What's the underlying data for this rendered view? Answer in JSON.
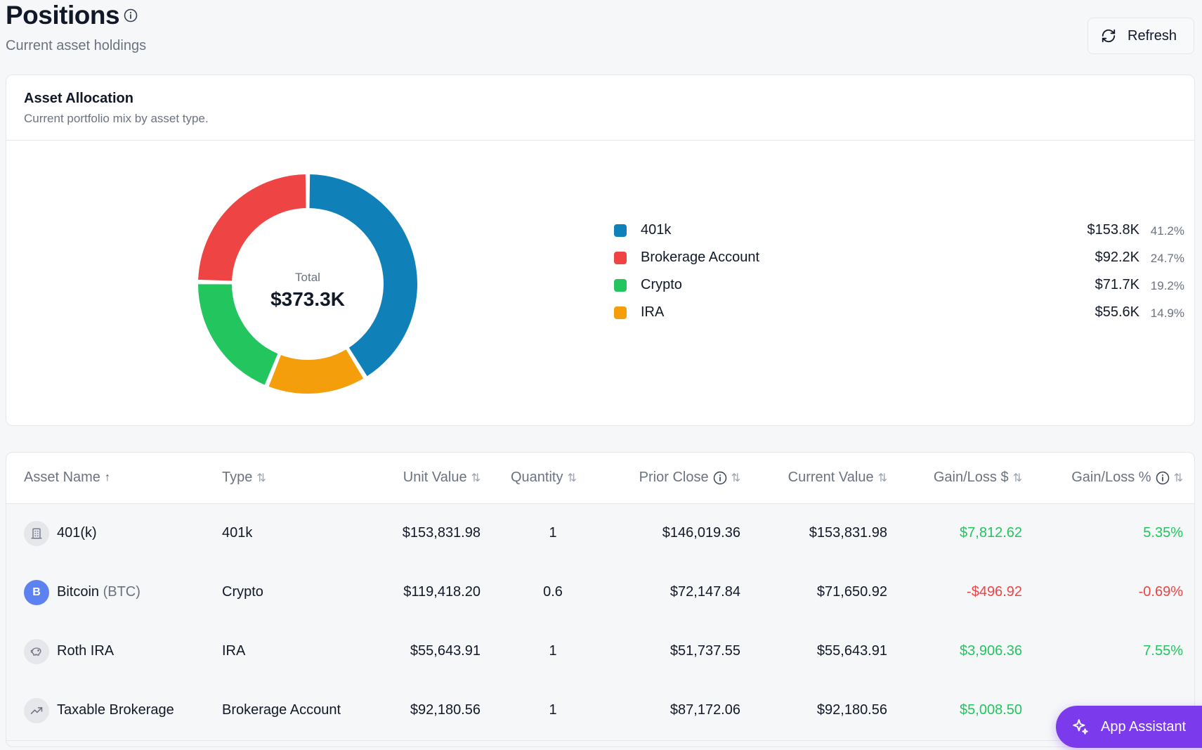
{
  "header": {
    "title": "Positions",
    "subtitle": "Current asset holdings",
    "refresh_label": "Refresh"
  },
  "allocation": {
    "title": "Asset Allocation",
    "subtitle": "Current portfolio mix by asset type.",
    "center_label": "Total",
    "center_value": "$373.3K",
    "legend": [
      {
        "name": "401k",
        "value": "$153.8K",
        "pct": "41.2%",
        "color": "#1080b8"
      },
      {
        "name": "Brokerage Account",
        "value": "$92.2K",
        "pct": "24.7%",
        "color": "#ef4444"
      },
      {
        "name": "Crypto",
        "value": "$71.7K",
        "pct": "19.2%",
        "color": "#22c55e"
      },
      {
        "name": "IRA",
        "value": "$55.6K",
        "pct": "14.9%",
        "color": "#f59e0b"
      }
    ]
  },
  "chart_data": {
    "type": "pie",
    "categories": [
      "401k",
      "IRA",
      "Crypto",
      "Brokerage Account"
    ],
    "values": [
      41.2,
      14.9,
      19.2,
      24.7
    ],
    "colors": [
      "#1080b8",
      "#f59e0b",
      "#22c55e",
      "#ef4444"
    ],
    "donut": true,
    "title": "Asset Allocation"
  },
  "table": {
    "columns": [
      "Asset Name",
      "Type",
      "Unit Value",
      "Quantity",
      "Prior Close",
      "Current Value",
      "Gain/Loss $",
      "Gain/Loss %"
    ],
    "sort_asc_glyph": "↑",
    "sort_glyph": "⇅",
    "rows": [
      {
        "name": "401(k)",
        "ticker": "",
        "icon": "building-icon",
        "type": "401k",
        "unit_value": "$153,831.98",
        "quantity": "1",
        "prior_close": "$146,019.36",
        "current_value": "$153,831.98",
        "gain_usd": "$7,812.62",
        "gain_pct": "5.35%",
        "positive": true
      },
      {
        "name": "Bitcoin",
        "ticker": "(BTC)",
        "icon": "B",
        "type": "Crypto",
        "unit_value": "$119,418.20",
        "quantity": "0.6",
        "prior_close": "$72,147.84",
        "current_value": "$71,650.92",
        "gain_usd": "-$496.92",
        "gain_pct": "-0.69%",
        "positive": false
      },
      {
        "name": "Roth IRA",
        "ticker": "",
        "icon": "piggy-bank-icon",
        "type": "IRA",
        "unit_value": "$55,643.91",
        "quantity": "1",
        "prior_close": "$51,737.55",
        "current_value": "$55,643.91",
        "gain_usd": "$3,906.36",
        "gain_pct": "7.55%",
        "positive": true
      },
      {
        "name": "Taxable Brokerage",
        "ticker": "",
        "icon": "trending-up-icon",
        "type": "Brokerage Account",
        "unit_value": "$92,180.56",
        "quantity": "1",
        "prior_close": "$87,172.06",
        "current_value": "$92,180.56",
        "gain_usd": "$5,008.50",
        "gain_pct": "",
        "positive": true
      }
    ]
  },
  "assistant": {
    "label": "App Assistant"
  }
}
